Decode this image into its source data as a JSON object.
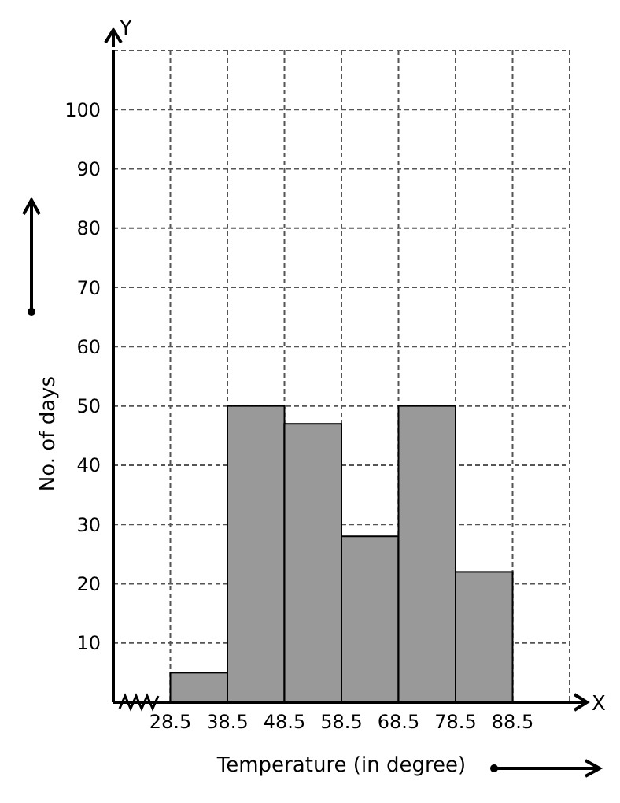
{
  "chart_data": {
    "type": "histogram",
    "xlabel": "Temperature (in degree)",
    "ylabel": "No. of days",
    "annotations": [
      "X",
      "Y"
    ],
    "bins": [
      28.5,
      38.5,
      48.5,
      58.5,
      68.5,
      78.5,
      88.5
    ],
    "values": [
      5,
      50,
      47,
      28,
      50,
      22
    ],
    "color": "#999999",
    "xlim": [
      18.5,
      98.5
    ],
    "xticks": [
      28.5,
      38.5,
      48.5,
      58.5,
      68.5,
      78.5,
      88.5
    ],
    "ylim": [
      0,
      110
    ],
    "yticks": [
      10,
      20,
      30,
      40,
      50,
      60,
      70,
      80,
      90,
      100
    ],
    "grid": true
  }
}
